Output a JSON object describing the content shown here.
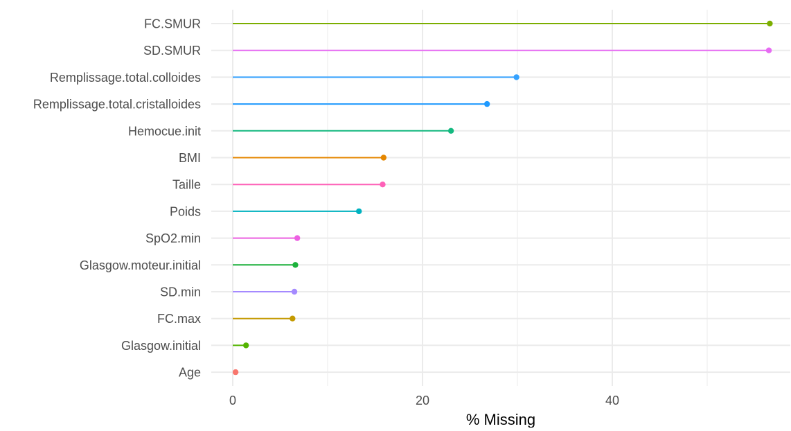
{
  "chart_data": {
    "type": "lollipop",
    "title": "",
    "xlabel": "% Missing",
    "ylabel": "",
    "xlim": [
      -2.3,
      57.1
    ],
    "x_ticks": [
      0,
      20,
      40
    ],
    "x_tick_labels": [
      "0",
      "20",
      "40"
    ],
    "x_minor_ticks": [
      10,
      30,
      50
    ],
    "grid": true,
    "legend": "none",
    "categories": [
      "FC.SMUR",
      "SD.SMUR",
      "Remplissage.total.colloides",
      "Remplissage.total.cristalloides",
      "Hemocue.init",
      "BMI",
      "Taille",
      "Poids",
      "SpO2.min",
      "Glasgow.moteur.initial",
      "SD.min",
      "FC.max",
      "Glasgow.initial",
      "Age"
    ],
    "values": [
      56.6,
      56.5,
      29.9,
      26.8,
      23.0,
      15.9,
      15.8,
      13.3,
      6.8,
      6.6,
      6.5,
      6.3,
      1.4,
      0.3
    ],
    "colors": [
      "#7CAE00",
      "#E76BF3",
      "#35A2FF",
      "#1F9AFF",
      "#14B980",
      "#E58700",
      "#FE61B8",
      "#00B2C0",
      "#ED60E2",
      "#1DB23C",
      "#A58AFF",
      "#C49A00",
      "#53B400",
      "#F8766D"
    ]
  }
}
